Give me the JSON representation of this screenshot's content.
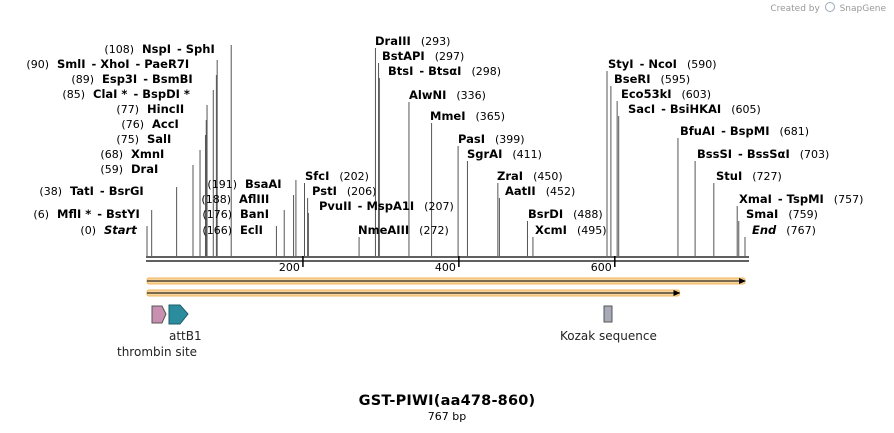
{
  "credit": {
    "prefix": "Created by",
    "brand": "SnapGene"
  },
  "title": "GST-PIWI(aa478-860)",
  "subtitle": "767 bp",
  "sequence_length": 767,
  "axis": {
    "ticks": [
      {
        "value": 200,
        "label": "200"
      },
      {
        "value": 400,
        "label": "400"
      },
      {
        "value": 600,
        "label": "600"
      }
    ]
  },
  "enzyme_labels": [
    {
      "id": "nspi",
      "name": "NspI",
      "sep": "-",
      "name2": "SphI",
      "pos": "(108)",
      "pos_side": "left",
      "site": 108
    },
    {
      "id": "smli",
      "name": "SmlI",
      "sep": "-",
      "name2": "XhoI",
      "name3": "PaeR7I",
      "pos": "(90)",
      "pos_side": "left",
      "site": 90
    },
    {
      "id": "esp3i",
      "name": "Esp3I",
      "sep": "-",
      "name2": "BsmBI",
      "pos": "(89)",
      "pos_side": "left",
      "site": 89
    },
    {
      "id": "clai",
      "name": "ClaI *",
      "sep": "-",
      "name2": "BspDI *",
      "pos": "(85)",
      "pos_side": "left",
      "site": 85
    },
    {
      "id": "hincii",
      "name": "HincII",
      "pos": "(77)",
      "pos_side": "left",
      "site": 77
    },
    {
      "id": "acci",
      "name": "AccI",
      "pos": "(76)",
      "pos_side": "left",
      "site": 76
    },
    {
      "id": "sali",
      "name": "SalI",
      "pos": "(75)",
      "pos_side": "left",
      "site": 75
    },
    {
      "id": "xmni",
      "name": "XmnI",
      "pos": "(68)",
      "pos_side": "left",
      "site": 68
    },
    {
      "id": "drai",
      "name": "DraI",
      "pos": "(59)",
      "pos_side": "left",
      "site": 59
    },
    {
      "id": "tati",
      "name": "TatI",
      "sep": "-",
      "name2": "BsrGI",
      "pos": "(38)",
      "pos_side": "left",
      "site": 38
    },
    {
      "id": "mfli",
      "name": "MflI *",
      "sep": "-",
      "name2": "BstYI",
      "pos": "(6)",
      "pos_side": "left",
      "site": 6
    },
    {
      "id": "start",
      "name": "Start",
      "italic": true,
      "pos": "(0)",
      "pos_side": "left",
      "site": 0
    },
    {
      "id": "bsaai",
      "name": "BsaAI",
      "pos": "(191)",
      "pos_side": "left",
      "site": 191
    },
    {
      "id": "afliii",
      "name": "AflIII",
      "pos": "(188)",
      "pos_side": "left",
      "site": 188
    },
    {
      "id": "bani",
      "name": "BanI",
      "pos": "(176)",
      "pos_side": "left",
      "site": 176
    },
    {
      "id": "ecli",
      "name": "EclI",
      "pos": "(166)",
      "pos_side": "left",
      "site": 166
    },
    {
      "id": "sfci",
      "name": "SfcI",
      "pos": "(202)",
      "pos_side": "right",
      "site": 202
    },
    {
      "id": "psti",
      "name": "PstI",
      "pos": "(206)",
      "pos_side": "right",
      "site": 206
    },
    {
      "id": "pvuii",
      "name": "PvuII",
      "sep": "-",
      "name2": "MspA1I",
      "pos": "(207)",
      "pos_side": "right",
      "site": 207
    },
    {
      "id": "nmeaiii",
      "name": "NmeAIII",
      "pos": "(272)",
      "pos_side": "right",
      "site": 272
    },
    {
      "id": "draiii",
      "name": "DraIII",
      "pos": "(293)",
      "pos_side": "right",
      "site": 293
    },
    {
      "id": "bstapi",
      "name": "BstAPI",
      "pos": "(297)",
      "pos_side": "right",
      "site": 297
    },
    {
      "id": "btsi",
      "name": "BtsI",
      "sep": "-",
      "name2": "BtsαI",
      "pos": "(298)",
      "pos_side": "right",
      "site": 298
    },
    {
      "id": "alwni",
      "name": "AlwNI",
      "pos": "(336)",
      "pos_side": "right",
      "site": 336
    },
    {
      "id": "mmei",
      "name": "MmeI",
      "pos": "(365)",
      "pos_side": "right",
      "site": 365
    },
    {
      "id": "pasi",
      "name": "PasI",
      "pos": "(399)",
      "pos_side": "right",
      "site": 399
    },
    {
      "id": "sgrai",
      "name": "SgrAI",
      "pos": "(411)",
      "pos_side": "right",
      "site": 411
    },
    {
      "id": "zrai",
      "name": "ZraI",
      "pos": "(450)",
      "pos_side": "right",
      "site": 450
    },
    {
      "id": "aatii",
      "name": "AatII",
      "pos": "(452)",
      "pos_side": "right",
      "site": 452
    },
    {
      "id": "bsrdi",
      "name": "BsrDI",
      "pos": "(488)",
      "pos_side": "right",
      "site": 488
    },
    {
      "id": "xcmi",
      "name": "XcmI",
      "pos": "(495)",
      "pos_side": "right",
      "site": 495
    },
    {
      "id": "styi",
      "name": "StyI",
      "sep": "-",
      "name2": "NcoI",
      "pos": "(590)",
      "pos_side": "right",
      "site": 590
    },
    {
      "id": "bseri",
      "name": "BseRI",
      "pos": "(595)",
      "pos_side": "right",
      "site": 595
    },
    {
      "id": "eco53ki",
      "name": "Eco53kI",
      "pos": "(603)",
      "pos_side": "right",
      "site": 603
    },
    {
      "id": "saci",
      "name": "SacI",
      "sep": "-",
      "name2": "BsiHKAI",
      "pos": "(605)",
      "pos_side": "right",
      "site": 605
    },
    {
      "id": "bfuai",
      "name": "BfuAI",
      "sep": "-",
      "name2": "BspMI",
      "pos": "(681)",
      "pos_side": "right",
      "site": 681
    },
    {
      "id": "bsssi",
      "name": "BssSI",
      "sep": "-",
      "name2": "BssSαI",
      "pos": "(703)",
      "pos_side": "right",
      "site": 703
    },
    {
      "id": "stui",
      "name": "StuI",
      "pos": "(727)",
      "pos_side": "right",
      "site": 727
    },
    {
      "id": "xmai",
      "name": "XmaI",
      "sep": "-",
      "name2": "TspMI",
      "pos": "(757)",
      "pos_side": "right",
      "site": 757
    },
    {
      "id": "smai",
      "name": "SmaI",
      "pos": "(759)",
      "pos_side": "right",
      "site": 759
    },
    {
      "id": "end",
      "name": "End",
      "italic": true,
      "pos": "(767)",
      "pos_side": "right",
      "site": 767
    }
  ],
  "features": {
    "orf_full": {
      "start": 0,
      "end": 767,
      "color": "#f2b45a"
    },
    "orf_partial": {
      "start": 0,
      "end": 683,
      "color": "#f2b45a"
    },
    "thrombin_site": {
      "label": "thrombin site",
      "color": "#c98fb0"
    },
    "attb1": {
      "label": "attB1",
      "color": "#2b8c9e"
    },
    "kozak": {
      "label": "Kozak sequence",
      "color": "#a8aab8"
    }
  }
}
